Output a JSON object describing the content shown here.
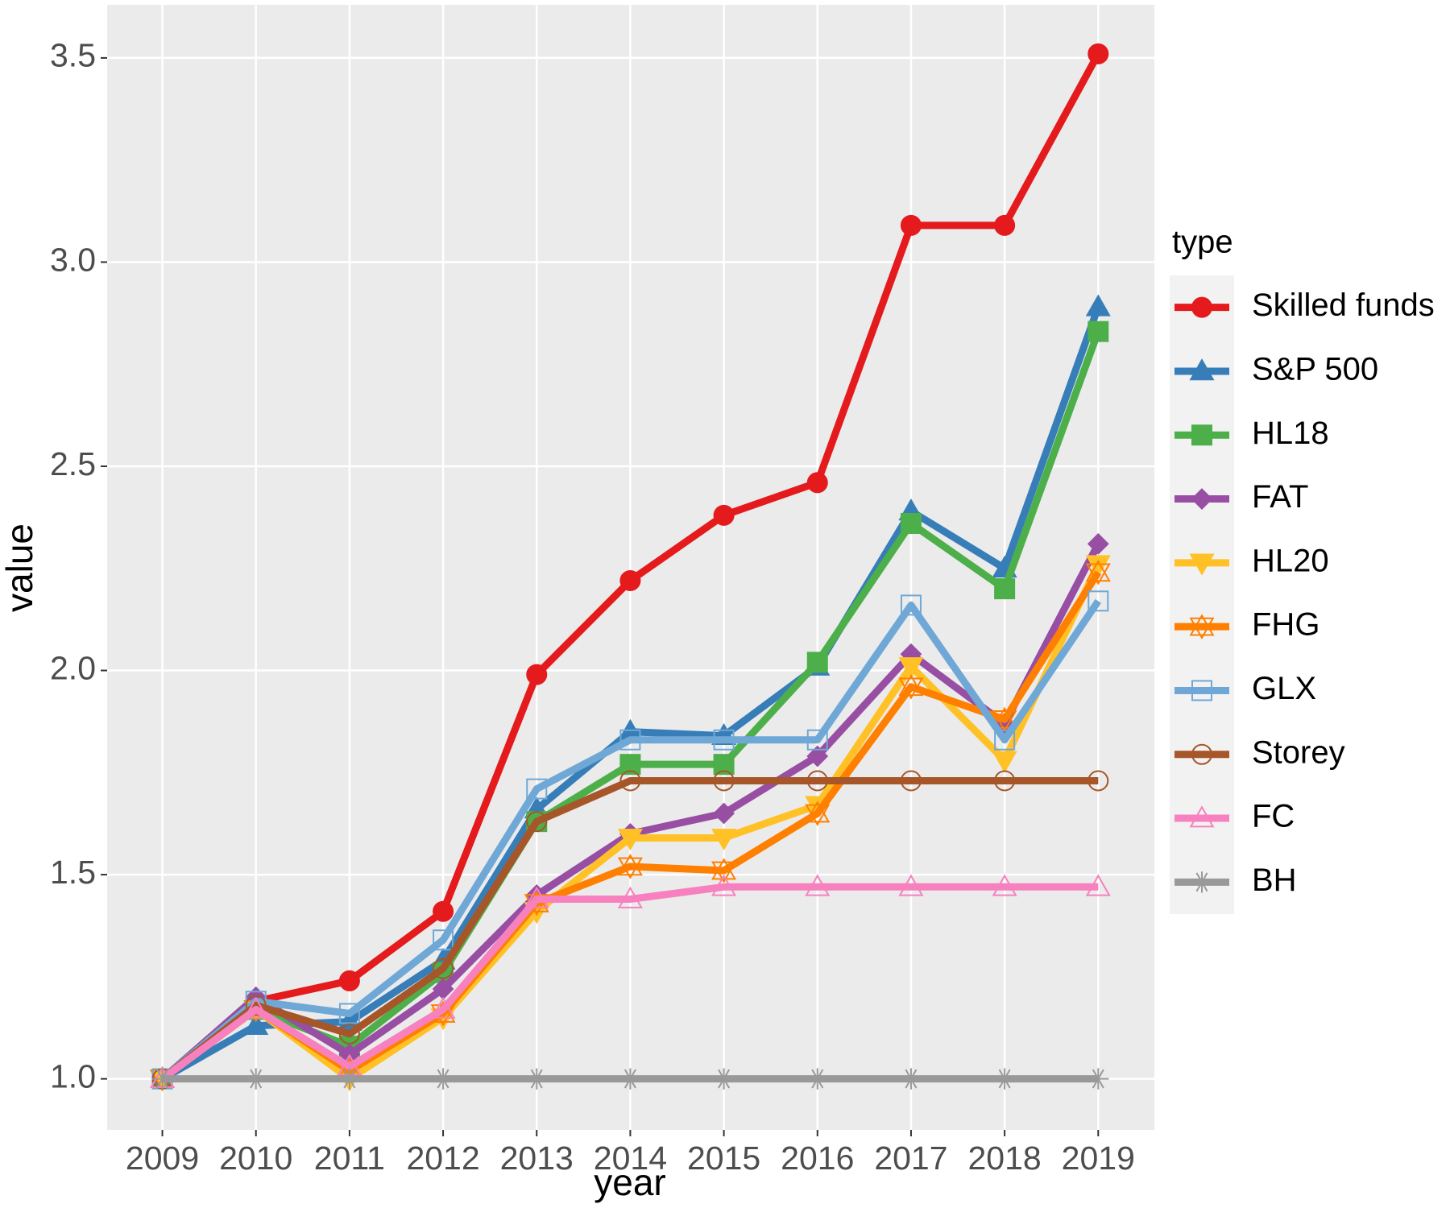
{
  "chart_data": {
    "type": "line",
    "x_label": "year",
    "y_label": "value",
    "legend_title": "type",
    "x": [
      2009,
      2010,
      2011,
      2012,
      2013,
      2014,
      2015,
      2016,
      2017,
      2018,
      2019
    ],
    "xlim": [
      2008.41,
      2019.6
    ],
    "xticks": [
      2009,
      2010,
      2011,
      2012,
      2013,
      2014,
      2015,
      2016,
      2017,
      2018,
      2019
    ],
    "ylim": [
      0.875,
      3.63
    ],
    "yticks": [
      {
        "value": 1,
        "label": "1.0"
      },
      1.5,
      {
        "value": 2,
        "label": "2.0"
      },
      2.5,
      {
        "value": 3,
        "label": "3.0"
      },
      3.5
    ],
    "grid": true,
    "legend_position": "right",
    "series": [
      {
        "name": "Skilled funds",
        "color": "#e41a1c",
        "marker": "circle",
        "values": [
          1.0,
          1.19,
          1.24,
          1.41,
          1.99,
          2.22,
          2.38,
          2.46,
          3.09,
          3.09,
          3.51
        ]
      },
      {
        "name": "S&P 500",
        "color": "#377eb8",
        "marker": "triangle",
        "values": [
          1.0,
          1.13,
          1.14,
          1.29,
          1.66,
          1.85,
          1.84,
          2.01,
          2.39,
          2.25,
          2.89
        ]
      },
      {
        "name": "HL18",
        "color": "#4daf4a",
        "marker": "square",
        "values": [
          1.0,
          1.17,
          1.08,
          1.26,
          1.63,
          1.77,
          1.77,
          2.02,
          2.36,
          2.2,
          2.83
        ]
      },
      {
        "name": "FAT",
        "color": "#984ea3",
        "marker": "diamond",
        "values": [
          1.0,
          1.2,
          1.06,
          1.22,
          1.45,
          1.6,
          1.65,
          1.79,
          2.04,
          1.87,
          2.31
        ]
      },
      {
        "name": "HL20",
        "color": "#ffc125",
        "marker": "triangle-down",
        "values": [
          1.0,
          1.17,
          1.0,
          1.15,
          1.41,
          1.59,
          1.59,
          1.67,
          2.01,
          1.78,
          2.26
        ]
      },
      {
        "name": "FHG",
        "color": "#ff7f00",
        "marker": "star6-open",
        "values": [
          1.0,
          1.17,
          1.02,
          1.16,
          1.43,
          1.52,
          1.51,
          1.65,
          1.96,
          1.88,
          2.24
        ]
      },
      {
        "name": "GLX",
        "color": "#6fa8d6",
        "marker": "square-open",
        "values": [
          1.0,
          1.19,
          1.16,
          1.34,
          1.71,
          1.83,
          1.83,
          1.83,
          2.16,
          1.83,
          2.17
        ]
      },
      {
        "name": "Storey",
        "color": "#a65628",
        "marker": "circle-open",
        "values": [
          1.0,
          1.18,
          1.11,
          1.27,
          1.63,
          1.73,
          1.73,
          1.73,
          1.73,
          1.73,
          1.73
        ]
      },
      {
        "name": "FC",
        "color": "#f781bf",
        "marker": "triangle-open",
        "values": [
          1.0,
          1.17,
          1.03,
          1.17,
          1.44,
          1.44,
          1.47,
          1.47,
          1.47,
          1.47,
          1.47
        ]
      },
      {
        "name": "BH",
        "color": "#999999",
        "marker": "asterisk",
        "values": [
          1.0,
          1.0,
          1.0,
          1.0,
          1.0,
          1.0,
          1.0,
          1.0,
          1.0,
          1.0,
          1.0
        ]
      }
    ]
  }
}
